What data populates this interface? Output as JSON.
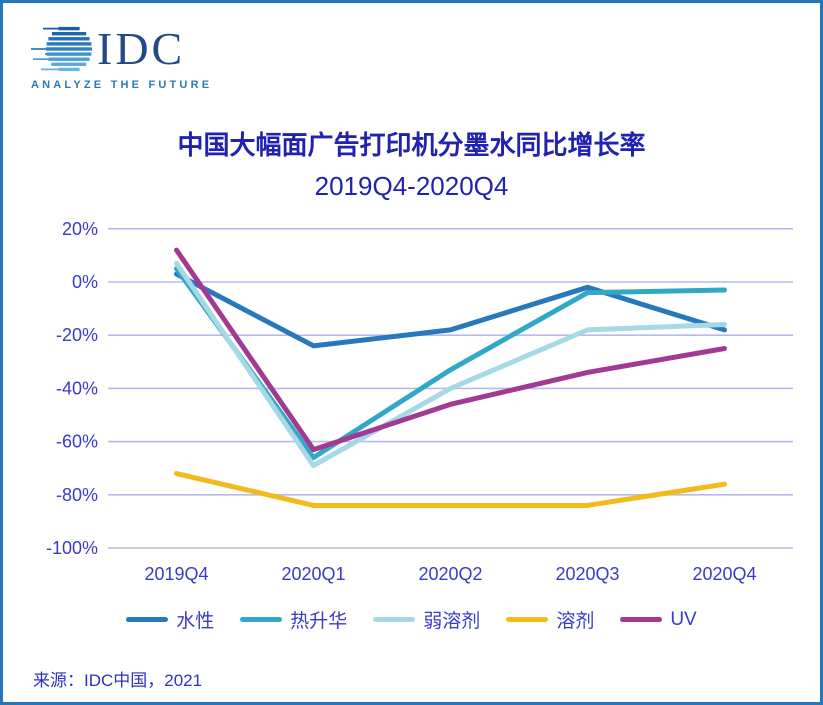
{
  "logo": {
    "name": "IDC",
    "tagline": "ANALYZE THE FUTURE",
    "globe_stripe_colors": [
      "#1A5DA4",
      "#1F66AE",
      "#2470B6",
      "#2A7ABB",
      "#2F83C2",
      "#3E93CD",
      "#4D9FD4",
      "#5CA9DA",
      "#6BB2DF"
    ]
  },
  "title": "中国大幅面广告打印机分墨水同比增长率",
  "subtitle": "2019Q4-2020Q4",
  "source": "来源：IDC中国，2021",
  "colors": {
    "border": "#2577B8",
    "title_text": "#2222B2",
    "axis_text": "#3A3ACB",
    "gridline": "#B9B9EE",
    "legend_text": "#3A3ACB",
    "source_text": "#3131BE"
  },
  "chart_data": {
    "type": "line",
    "title": "中国大幅面广告打印机分墨水同比增长率 2019Q4-2020Q4",
    "categories": [
      "2019Q4",
      "2020Q1",
      "2020Q2",
      "2020Q3",
      "2020Q4"
    ],
    "series": [
      {
        "name": "水性",
        "color": "#2878BE",
        "values": [
          3,
          -24,
          -18,
          -2,
          -18
        ]
      },
      {
        "name": "热升华",
        "color": "#31A8C6",
        "values": [
          5,
          -66,
          -33,
          -4,
          -3
        ]
      },
      {
        "name": "弱溶剂",
        "color": "#A5D9E6",
        "values": [
          7,
          -69,
          -40,
          -18,
          -16
        ]
      },
      {
        "name": "溶剂",
        "color": "#F2BB1B",
        "values": [
          -72,
          -84,
          -84,
          -84,
          -76
        ]
      },
      {
        "name": "UV",
        "color": "#A23A94",
        "values": [
          12,
          -63,
          -46,
          -34,
          -25
        ]
      }
    ],
    "ytick_labels": [
      "20%",
      "0%",
      "-20%",
      "-40%",
      "-60%",
      "-80%",
      "-100%"
    ],
    "ytick_values": [
      20,
      0,
      -20,
      -40,
      -60,
      -80,
      -100
    ],
    "ylim": [
      -100,
      20
    ],
    "unit": "percent",
    "grid": true,
    "legend_position": "bottom"
  }
}
